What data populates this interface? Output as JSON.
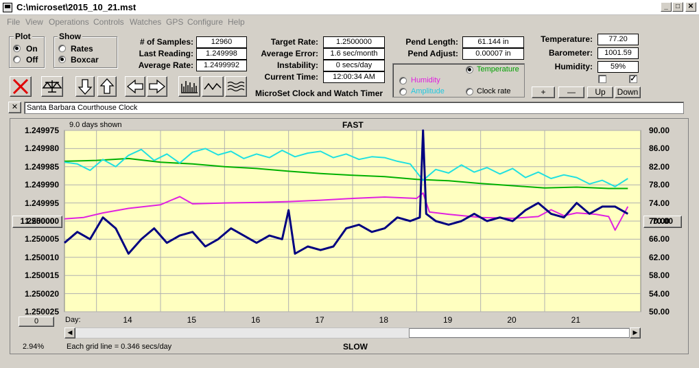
{
  "window": {
    "title": "C:\\microset\\2015_10_21.mst"
  },
  "menu": [
    "File",
    "View",
    "Operations",
    "Controls",
    "Watches",
    "GPS",
    "Configure",
    "Help"
  ],
  "plot_group": {
    "title": "Plot",
    "on": "On",
    "off": "Off",
    "selected": "On"
  },
  "show_group": {
    "title": "Show",
    "rates": "Rates",
    "boxcar": "Boxcar",
    "selected": "Boxcar"
  },
  "stats": {
    "samples_label": "# of Samples:",
    "samples": "12960",
    "last_label": "Last Reading:",
    "last": "1.249998",
    "avg_label": "Average Rate:",
    "avg": "1.2499992",
    "target_label": "Target Rate:",
    "target": "1.2500000",
    "avgerr_label": "Average Error:",
    "avgerr": "1.6 sec/month",
    "instab_label": "Instability:",
    "instab": "0 secs/day",
    "time_label": "Current Time:",
    "time": "12:00:34 AM",
    "product": "MicroSet Clock and Watch Timer",
    "pendlen_label": "Pend Length:",
    "pendlen": "61.144 in",
    "pendadj_label": "Pend Adjust:",
    "pendadj": "0.00007 in",
    "temp_label": "Temperature:",
    "temp": "77.20",
    "baro_label": "Barometer:",
    "baro": "1001.59",
    "hum_label": "Humidity:",
    "hum": "59%"
  },
  "sensor_select": {
    "temperature": "Temperature",
    "humidity": "Humidity",
    "amplitude": "Amplitude",
    "clock_rate": "Clock rate",
    "selected": "Temperature"
  },
  "scale_buttons": {
    "plus": "+",
    "minus": "—",
    "up": "Up",
    "down": "Down"
  },
  "checkboxes": [
    {
      "checked": false
    },
    {
      "checked": true
    }
  ],
  "close_x": "✕",
  "description": "Santa Barbara Courthouse Clock",
  "chart_data": {
    "type": "line",
    "top_text": "FAST",
    "bottom_text": "SLOW",
    "days_shown": "9.0 days shown",
    "grid_note": "Each grid line = 0.346 secs/day",
    "percent": "2.94%",
    "left_center_button": "1.250000",
    "right_center_button": "70.00",
    "bottom_left_button": "0",
    "x_title": "Day:",
    "x_ticks": [
      "14",
      "15",
      "16",
      "17",
      "18",
      "19",
      "20",
      "21"
    ],
    "xlim": [
      13.0,
      22.0
    ],
    "y_left_ticks": [
      "1.249975",
      "1.249980",
      "1.249985",
      "1.249990",
      "1.249995",
      "1.250000",
      "1.250005",
      "1.250010",
      "1.250015",
      "1.250020",
      "1.250025"
    ],
    "y_left_lim": [
      1.249975,
      1.250025
    ],
    "y_right_ticks": [
      "90.00",
      "86.00",
      "82.00",
      "78.00",
      "74.00",
      "70.00",
      "66.00",
      "62.00",
      "58.00",
      "54.00",
      "50.00"
    ],
    "y_right_lim": [
      50,
      90
    ],
    "colors": {
      "background": "#ffffc0",
      "rate": "#000080",
      "temperature": "#00b000",
      "humidity": "#e020e0",
      "amplitude": "#20e0e0"
    },
    "series": [
      {
        "key": "temperature",
        "axis": "right",
        "x": [
          13.0,
          13.5,
          14.0,
          14.5,
          15.0,
          15.5,
          16.0,
          16.5,
          17.0,
          17.5,
          18.0,
          18.5,
          19.0,
          19.5,
          20.0,
          20.5,
          21.0,
          21.5,
          21.8
        ],
        "y": [
          83.2,
          83.4,
          83.8,
          83.0,
          82.6,
          82.0,
          81.6,
          81.0,
          80.5,
          80.1,
          79.8,
          79.2,
          78.9,
          78.3,
          77.8,
          77.3,
          77.5,
          77.2,
          77.2
        ]
      },
      {
        "key": "humidity",
        "axis": "right",
        "x": [
          13.0,
          13.3,
          13.6,
          14.0,
          14.5,
          14.8,
          15.0,
          15.5,
          16.0,
          16.5,
          17.0,
          17.5,
          18.0,
          18.5,
          18.6,
          18.7,
          19.0,
          19.5,
          20.0,
          20.4,
          20.6,
          20.8,
          21.0,
          21.3,
          21.5,
          21.6,
          21.8
        ],
        "y": [
          70.5,
          70.8,
          71.8,
          72.8,
          73.6,
          75.4,
          73.8,
          74.0,
          74.1,
          74.3,
          74.6,
          75.0,
          75.3,
          75.0,
          76.2,
          72.0,
          71.5,
          70.8,
          70.6,
          71.0,
          72.5,
          71.2,
          71.8,
          71.5,
          71.0,
          68.0,
          73.2
        ]
      },
      {
        "key": "amplitude",
        "axis": "right",
        "x": [
          13.0,
          13.2,
          13.4,
          13.6,
          13.8,
          14.0,
          14.2,
          14.4,
          14.6,
          14.8,
          15.0,
          15.2,
          15.4,
          15.6,
          15.8,
          16.0,
          16.2,
          16.4,
          16.6,
          16.8,
          17.0,
          17.2,
          17.4,
          17.6,
          17.8,
          18.0,
          18.2,
          18.4,
          18.6,
          18.8,
          19.0,
          19.2,
          19.4,
          19.6,
          19.8,
          20.0,
          20.2,
          20.4,
          20.6,
          20.8,
          21.0,
          21.2,
          21.4,
          21.6,
          21.8
        ],
        "y": [
          83.0,
          82.6,
          81.2,
          83.6,
          82.0,
          84.5,
          85.8,
          83.4,
          84.8,
          82.8,
          85.2,
          86.0,
          84.6,
          85.4,
          83.8,
          84.8,
          84.0,
          85.6,
          84.2,
          85.0,
          85.4,
          84.0,
          84.8,
          83.6,
          84.2,
          84.0,
          83.2,
          82.6,
          79.0,
          81.4,
          80.6,
          82.4,
          80.8,
          81.8,
          80.4,
          81.6,
          79.6,
          80.8,
          79.4,
          80.2,
          79.6,
          78.2,
          79.0,
          77.6,
          79.4
        ]
      },
      {
        "key": "rate",
        "axis": "left",
        "x": [
          13.0,
          13.2,
          13.4,
          13.6,
          13.8,
          14.0,
          14.2,
          14.4,
          14.6,
          14.8,
          15.0,
          15.2,
          15.4,
          15.6,
          15.8,
          16.0,
          16.2,
          16.4,
          16.5,
          16.6,
          16.8,
          17.0,
          17.2,
          17.4,
          17.6,
          17.8,
          18.0,
          18.2,
          18.4,
          18.55,
          18.6,
          18.65,
          18.8,
          19.0,
          19.2,
          19.4,
          19.6,
          19.8,
          20.0,
          20.2,
          20.4,
          20.6,
          20.8,
          21.0,
          21.2,
          21.4,
          21.6,
          21.8
        ],
        "y": [
          1.250006,
          1.250003,
          1.250005,
          1.249999,
          1.250002,
          1.250009,
          1.250005,
          1.250002,
          1.250006,
          1.250004,
          1.250003,
          1.250007,
          1.250005,
          1.250002,
          1.250004,
          1.250006,
          1.250004,
          1.250005,
          1.249997,
          1.250009,
          1.250007,
          1.250008,
          1.250007,
          1.250002,
          1.250001,
          1.250003,
          1.250002,
          1.249999,
          1.25,
          1.249999,
          1.249975,
          1.249998,
          1.25,
          1.250001,
          1.25,
          1.249998,
          1.25,
          1.249999,
          1.25,
          1.249997,
          1.249995,
          1.249998,
          1.249999,
          1.249995,
          1.249998,
          1.249996,
          1.249996,
          1.249998
        ]
      }
    ]
  }
}
